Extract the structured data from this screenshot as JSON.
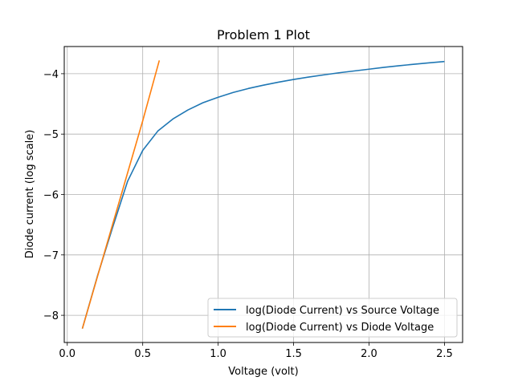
{
  "chart_data": {
    "type": "line",
    "title": "Problem 1 Plot",
    "xlabel": "Voltage (volt)",
    "ylabel": "Diode current (log scale)",
    "xlim": [
      -0.02,
      2.62
    ],
    "ylim": [
      -8.45,
      -3.55
    ],
    "xticks": [
      0.0,
      0.5,
      1.0,
      1.5,
      2.0,
      2.5
    ],
    "xtick_labels": [
      "0.0",
      "0.5",
      "1.0",
      "1.5",
      "2.0",
      "2.5"
    ],
    "yticks": [
      -8,
      -7,
      -6,
      -5,
      -4
    ],
    "ytick_labels": [
      "−8",
      "−7",
      "−6",
      "−5",
      "−4"
    ],
    "grid": true,
    "legend": "lower-right",
    "series": [
      {
        "name": "log(Diode Current) vs Source Voltage",
        "color": "#1f77b4",
        "x": [
          0.1,
          0.2,
          0.3,
          0.4,
          0.5,
          0.6,
          0.7,
          0.8,
          0.9,
          1.0,
          1.1,
          1.2,
          1.3,
          1.4,
          1.5,
          1.6,
          1.7,
          1.8,
          1.9,
          2.0,
          2.1,
          2.2,
          2.3,
          2.4,
          2.5
        ],
        "y": [
          -8.22,
          -7.35,
          -6.55,
          -5.78,
          -5.27,
          -4.95,
          -4.75,
          -4.6,
          -4.48,
          -4.39,
          -4.31,
          -4.245,
          -4.19,
          -4.14,
          -4.095,
          -4.055,
          -4.02,
          -3.985,
          -3.955,
          -3.925,
          -3.895,
          -3.868,
          -3.843,
          -3.82,
          -3.798
        ]
      },
      {
        "name": "log(Diode Current) vs Diode Voltage",
        "color": "#ff7f0e",
        "x": [
          0.1,
          0.2,
          0.3,
          0.4,
          0.5,
          0.61
        ],
        "y": [
          -8.22,
          -7.36,
          -6.5,
          -5.64,
          -4.78,
          -3.78
        ]
      }
    ]
  }
}
